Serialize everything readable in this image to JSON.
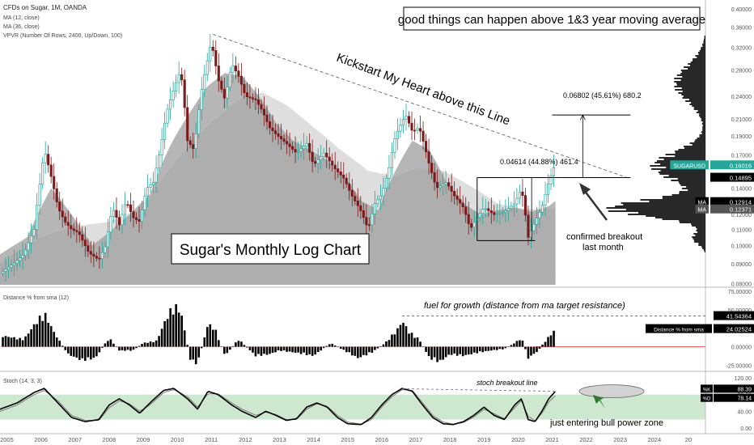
{
  "chart_data": [
    {
      "type": "candlestick",
      "title": "CFDs on Sugar, 1M, OANDA",
      "indicators": [
        "MA (12, close)",
        "MA (36, close)",
        "VPVR (Number Of Rows, 2400, Up/Down, 100)"
      ],
      "y_scale": "log",
      "ylim": [
        0.0795,
        0.41
      ],
      "y_ticks": [
        "0.40000",
        "0.36000",
        "0.32000",
        "0.28000",
        "0.24000",
        "0.21000",
        "0.19000",
        "0.17000",
        "0.15000",
        "0.14000",
        "0.12000",
        "0.11000",
        "0.10000",
        "0.09000",
        "0.08000"
      ],
      "x_ticks": [
        "2005",
        "2006",
        "2007",
        "2008",
        "2009",
        "2010",
        "2011",
        "2012",
        "2013",
        "2014",
        "2015",
        "2016",
        "2017",
        "2018",
        "2019",
        "2020",
        "2021",
        "2022",
        "2023",
        "2024",
        "20"
      ],
      "x_range_years": [
        2004.8,
        2025.5
      ],
      "close_path": [
        [
          2004.8,
          0.085
        ],
        [
          2005.2,
          0.09
        ],
        [
          2005.5,
          0.095
        ],
        [
          2005.8,
          0.11
        ],
        [
          2006.0,
          0.15
        ],
        [
          2006.1,
          0.175
        ],
        [
          2006.3,
          0.15
        ],
        [
          2006.5,
          0.125
        ],
        [
          2006.7,
          0.115
        ],
        [
          2006.9,
          0.11
        ],
        [
          2007.1,
          0.108
        ],
        [
          2007.4,
          0.096
        ],
        [
          2007.7,
          0.092
        ],
        [
          2007.9,
          0.1
        ],
        [
          2008.1,
          0.125
        ],
        [
          2008.3,
          0.113
        ],
        [
          2008.5,
          0.13
        ],
        [
          2008.7,
          0.118
        ],
        [
          2008.9,
          0.115
        ],
        [
          2009.1,
          0.14
        ],
        [
          2009.3,
          0.145
        ],
        [
          2009.5,
          0.175
        ],
        [
          2009.7,
          0.22
        ],
        [
          2009.9,
          0.25
        ],
        [
          2010.1,
          0.28
        ],
        [
          2010.3,
          0.185
        ],
        [
          2010.5,
          0.175
        ],
        [
          2010.7,
          0.245
        ],
        [
          2010.9,
          0.3
        ],
        [
          2011.0,
          0.33
        ],
        [
          2011.2,
          0.265
        ],
        [
          2011.4,
          0.235
        ],
        [
          2011.6,
          0.29
        ],
        [
          2011.8,
          0.27
        ],
        [
          2012.0,
          0.24
        ],
        [
          2012.3,
          0.235
        ],
        [
          2012.5,
          0.22
        ],
        [
          2012.7,
          0.2
        ],
        [
          2012.9,
          0.192
        ],
        [
          2013.2,
          0.182
        ],
        [
          2013.5,
          0.172
        ],
        [
          2013.8,
          0.182
        ],
        [
          2014.0,
          0.16
        ],
        [
          2014.3,
          0.172
        ],
        [
          2014.6,
          0.158
        ],
        [
          2014.9,
          0.148
        ],
        [
          2015.1,
          0.135
        ],
        [
          2015.4,
          0.122
        ],
        [
          2015.6,
          0.11
        ],
        [
          2015.8,
          0.128
        ],
        [
          2016.0,
          0.135
        ],
        [
          2016.2,
          0.155
        ],
        [
          2016.4,
          0.19
        ],
        [
          2016.7,
          0.215
        ],
        [
          2016.9,
          0.195
        ],
        [
          2017.1,
          0.2
        ],
        [
          2017.4,
          0.16
        ],
        [
          2017.6,
          0.14
        ],
        [
          2017.9,
          0.145
        ],
        [
          2018.1,
          0.135
        ],
        [
          2018.4,
          0.125
        ],
        [
          2018.6,
          0.11
        ],
        [
          2018.8,
          0.118
        ],
        [
          2019.0,
          0.125
        ],
        [
          2019.3,
          0.12
        ],
        [
          2019.6,
          0.122
        ],
        [
          2019.9,
          0.128
        ],
        [
          2020.1,
          0.14
        ],
        [
          2020.3,
          0.105
        ],
        [
          2020.5,
          0.115
        ],
        [
          2020.7,
          0.125
        ],
        [
          2020.9,
          0.145
        ],
        [
          2021.1,
          0.162
        ]
      ],
      "ma12_path": [
        [
          2004.8,
          0.095
        ],
        [
          2005.6,
          0.105
        ],
        [
          2006.3,
          0.14
        ],
        [
          2006.9,
          0.12
        ],
        [
          2007.5,
          0.1
        ],
        [
          2008.0,
          0.108
        ],
        [
          2008.6,
          0.12
        ],
        [
          2009.2,
          0.135
        ],
        [
          2009.8,
          0.18
        ],
        [
          2010.4,
          0.22
        ],
        [
          2010.9,
          0.255
        ],
        [
          2011.4,
          0.275
        ],
        [
          2011.9,
          0.27
        ],
        [
          2012.4,
          0.24
        ],
        [
          2012.9,
          0.205
        ],
        [
          2013.4,
          0.185
        ],
        [
          2013.9,
          0.175
        ],
        [
          2014.4,
          0.165
        ],
        [
          2014.9,
          0.15
        ],
        [
          2015.4,
          0.13
        ],
        [
          2015.9,
          0.123
        ],
        [
          2016.4,
          0.155
        ],
        [
          2016.9,
          0.185
        ],
        [
          2017.4,
          0.175
        ],
        [
          2017.9,
          0.145
        ],
        [
          2018.4,
          0.128
        ],
        [
          2018.9,
          0.12
        ],
        [
          2019.4,
          0.123
        ],
        [
          2019.9,
          0.125
        ],
        [
          2020.4,
          0.122
        ],
        [
          2020.9,
          0.126
        ],
        [
          2021.1,
          0.13
        ]
      ],
      "ma36_path": [
        [
          2004.8,
          0.09
        ],
        [
          2006.0,
          0.105
        ],
        [
          2007.0,
          0.112
        ],
        [
          2008.0,
          0.115
        ],
        [
          2009.0,
          0.125
        ],
        [
          2010.0,
          0.165
        ],
        [
          2011.0,
          0.205
        ],
        [
          2011.8,
          0.235
        ],
        [
          2012.5,
          0.245
        ],
        [
          2013.2,
          0.228
        ],
        [
          2014.0,
          0.2
        ],
        [
          2014.8,
          0.175
        ],
        [
          2015.6,
          0.155
        ],
        [
          2016.4,
          0.15
        ],
        [
          2017.0,
          0.157
        ],
        [
          2017.8,
          0.155
        ],
        [
          2018.6,
          0.142
        ],
        [
          2019.4,
          0.128
        ],
        [
          2020.2,
          0.124
        ],
        [
          2021.1,
          0.124
        ]
      ],
      "price_labels": [
        {
          "label": "SUGARUSD",
          "value": "0.16016",
          "color": "#26a69a"
        },
        {
          "label": "",
          "value": "0.14895",
          "color": "#000000"
        },
        {
          "label": "MA",
          "value": "0.12914",
          "color": "#000000"
        },
        {
          "label": "MA",
          "value": "0.12371",
          "color": "#555555"
        }
      ],
      "annotations": {
        "headline": "good things can happen above 1&3 year moving average",
        "trendline_label": "Kickstart My Heart above this Line",
        "measure_1": "0.04614 (44.88%) 461.4",
        "measure_2": "0.06802 (45.61%) 680.2",
        "breakout_note_1": "confirmed breakout",
        "breakout_note_2": "last month",
        "box_title": "Sugar's Monthly Log Chart"
      }
    },
    {
      "type": "histogram",
      "title": "Distance % from sma (12)",
      "ylim": [
        -30,
        75
      ],
      "y_ticks": [
        "75.00000",
        "50.00000",
        "25.00000",
        "0.00000",
        "-25.00000"
      ],
      "label_value": {
        "label": "Distance % from sma",
        "value": "24.02524"
      },
      "target_level": "41.54364",
      "annotation": "fuel for growth (distance from ma target resistance)",
      "series_path": [
        [
          2004.8,
          15
        ],
        [
          2005.5,
          10
        ],
        [
          2005.9,
          35
        ],
        [
          2006.1,
          45
        ],
        [
          2006.4,
          18
        ],
        [
          2006.8,
          -10
        ],
        [
          2007.2,
          -18
        ],
        [
          2007.6,
          -15
        ],
        [
          2008.0,
          12
        ],
        [
          2008.3,
          -5
        ],
        [
          2008.7,
          -5
        ],
        [
          2009.0,
          5
        ],
        [
          2009.4,
          8
        ],
        [
          2009.7,
          40
        ],
        [
          2009.9,
          55
        ],
        [
          2010.1,
          48
        ],
        [
          2010.4,
          -20
        ],
        [
          2010.6,
          -22
        ],
        [
          2010.9,
          30
        ],
        [
          2011.1,
          25
        ],
        [
          2011.4,
          -12
        ],
        [
          2011.8,
          10
        ],
        [
          2012.3,
          -12
        ],
        [
          2012.7,
          -10
        ],
        [
          2013.0,
          -5
        ],
        [
          2013.5,
          -8
        ],
        [
          2014.0,
          -12
        ],
        [
          2014.5,
          5
        ],
        [
          2014.9,
          -5
        ],
        [
          2015.3,
          -15
        ],
        [
          2015.7,
          -8
        ],
        [
          2016.1,
          5
        ],
        [
          2016.5,
          25
        ],
        [
          2016.6,
          35
        ],
        [
          2016.8,
          20
        ],
        [
          2017.1,
          10
        ],
        [
          2017.4,
          -15
        ],
        [
          2017.7,
          -20
        ],
        [
          2018.0,
          -10
        ],
        [
          2018.4,
          -12
        ],
        [
          2018.8,
          -8
        ],
        [
          2019.2,
          -5
        ],
        [
          2019.6,
          -3
        ],
        [
          2019.9,
          5
        ],
        [
          2020.1,
          12
        ],
        [
          2020.3,
          -15
        ],
        [
          2020.6,
          -5
        ],
        [
          2020.8,
          8
        ],
        [
          2021.0,
          18
        ],
        [
          2021.1,
          24
        ]
      ]
    },
    {
      "type": "line",
      "title": "Stoch (14, 3, 3)",
      "ylim": [
        -10,
        130
      ],
      "y_ticks": [
        "120.00",
        "80.00",
        "40.00",
        "0.00"
      ],
      "band": [
        20,
        80
      ],
      "label_values": [
        {
          "label": "%K",
          "value": "88.39"
        },
        {
          "label": "%D",
          "value": "78.14"
        }
      ],
      "annotations": {
        "line_label": "stoch breakout line",
        "zone_note": "just entering bull power zone"
      },
      "k_path": [
        [
          2004.8,
          45
        ],
        [
          2005.3,
          60
        ],
        [
          2005.8,
          85
        ],
        [
          2006.1,
          95
        ],
        [
          2006.5,
          60
        ],
        [
          2006.9,
          25
        ],
        [
          2007.3,
          15
        ],
        [
          2007.7,
          20
        ],
        [
          2008.0,
          55
        ],
        [
          2008.3,
          70
        ],
        [
          2008.6,
          55
        ],
        [
          2008.9,
          35
        ],
        [
          2009.2,
          60
        ],
        [
          2009.6,
          90
        ],
        [
          2009.9,
          95
        ],
        [
          2010.3,
          70
        ],
        [
          2010.6,
          45
        ],
        [
          2010.9,
          88
        ],
        [
          2011.2,
          80
        ],
        [
          2011.6,
          55
        ],
        [
          2011.9,
          40
        ],
        [
          2012.3,
          25
        ],
        [
          2012.6,
          40
        ],
        [
          2012.9,
          30
        ],
        [
          2013.2,
          18
        ],
        [
          2013.5,
          22
        ],
        [
          2013.8,
          50
        ],
        [
          2014.1,
          60
        ],
        [
          2014.4,
          50
        ],
        [
          2014.7,
          25
        ],
        [
          2015.0,
          10
        ],
        [
          2015.4,
          8
        ],
        [
          2015.7,
          25
        ],
        [
          2016.0,
          55
        ],
        [
          2016.3,
          80
        ],
        [
          2016.6,
          95
        ],
        [
          2016.9,
          88
        ],
        [
          2017.2,
          55
        ],
        [
          2017.5,
          25
        ],
        [
          2017.8,
          10
        ],
        [
          2018.1,
          8
        ],
        [
          2018.4,
          15
        ],
        [
          2018.7,
          30
        ],
        [
          2019.0,
          50
        ],
        [
          2019.3,
          30
        ],
        [
          2019.6,
          20
        ],
        [
          2019.9,
          55
        ],
        [
          2020.1,
          70
        ],
        [
          2020.3,
          20
        ],
        [
          2020.5,
          15
        ],
        [
          2020.7,
          40
        ],
        [
          2020.9,
          70
        ],
        [
          2021.1,
          88
        ]
      ],
      "d_path": [
        [
          2004.8,
          40
        ],
        [
          2005.3,
          55
        ],
        [
          2005.8,
          80
        ],
        [
          2006.1,
          90
        ],
        [
          2006.5,
          65
        ],
        [
          2006.9,
          30
        ],
        [
          2007.3,
          18
        ],
        [
          2007.7,
          18
        ],
        [
          2008.0,
          48
        ],
        [
          2008.3,
          65
        ],
        [
          2008.6,
          58
        ],
        [
          2008.9,
          40
        ],
        [
          2009.2,
          55
        ],
        [
          2009.6,
          85
        ],
        [
          2009.9,
          92
        ],
        [
          2010.3,
          75
        ],
        [
          2010.6,
          50
        ],
        [
          2010.9,
          82
        ],
        [
          2011.2,
          82
        ],
        [
          2011.6,
          60
        ],
        [
          2011.9,
          45
        ],
        [
          2012.3,
          30
        ],
        [
          2012.6,
          38
        ],
        [
          2012.9,
          32
        ],
        [
          2013.2,
          20
        ],
        [
          2013.5,
          20
        ],
        [
          2013.8,
          45
        ],
        [
          2014.1,
          58
        ],
        [
          2014.4,
          52
        ],
        [
          2014.7,
          30
        ],
        [
          2015.0,
          14
        ],
        [
          2015.4,
          9
        ],
        [
          2015.7,
          20
        ],
        [
          2016.0,
          50
        ],
        [
          2016.3,
          75
        ],
        [
          2016.6,
          92
        ],
        [
          2016.9,
          90
        ],
        [
          2017.2,
          60
        ],
        [
          2017.5,
          30
        ],
        [
          2017.8,
          14
        ],
        [
          2018.1,
          9
        ],
        [
          2018.4,
          13
        ],
        [
          2018.7,
          26
        ],
        [
          2019.0,
          45
        ],
        [
          2019.3,
          34
        ],
        [
          2019.6,
          22
        ],
        [
          2019.9,
          48
        ],
        [
          2020.1,
          66
        ],
        [
          2020.3,
          28
        ],
        [
          2020.5,
          17
        ],
        [
          2020.7,
          35
        ],
        [
          2020.9,
          62
        ],
        [
          2021.1,
          78
        ]
      ]
    }
  ],
  "colors": {
    "up": "#26a69a",
    "down": "#7b1a1a",
    "ma_fill_dark": "#9e9e9e",
    "ma_fill_light": "#dcdcdc",
    "stoch_zone": "#a5d6a7",
    "zero_line": "#ef5350",
    "arrow_green": "#2e7d32"
  }
}
